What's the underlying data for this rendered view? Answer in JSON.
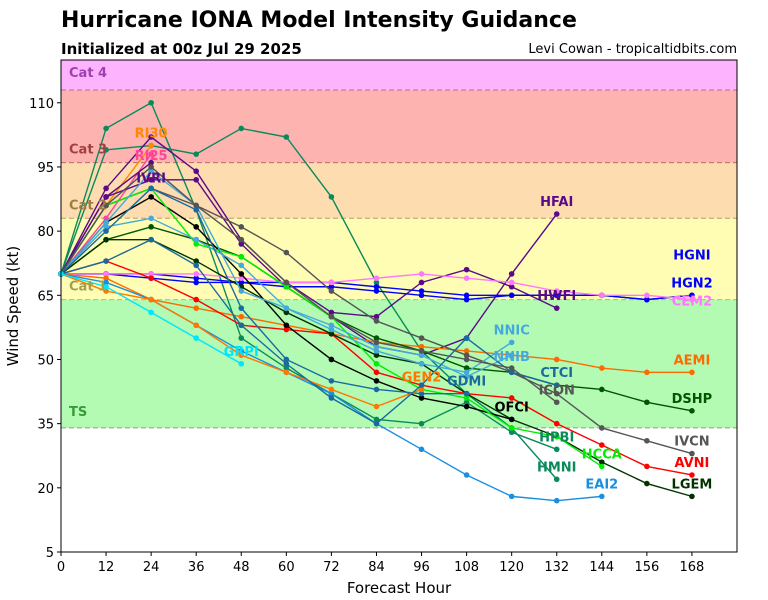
{
  "chart_data": {
    "type": "line",
    "title": "Hurricane IONA Model Intensity Guidance",
    "subtitle": "Initialized at 00z Jul 29 2025",
    "credit": "Levi Cowan - tropicaltidbits.com",
    "xlabel": "Forecast Hour",
    "ylabel": "Wind Speed (kt)",
    "xlim": [
      0,
      180
    ],
    "ylim": [
      5,
      120
    ],
    "xticks": [
      0,
      12,
      24,
      36,
      48,
      60,
      72,
      84,
      96,
      108,
      120,
      132,
      144,
      156,
      168
    ],
    "yticks": [
      5,
      20,
      35,
      50,
      65,
      80,
      95,
      110
    ],
    "bands": [
      {
        "label": "TS",
        "from": 34,
        "to": 64,
        "color": "#b3fbb3",
        "text_color": "#3a9a3a"
      },
      {
        "label": "Cat 1",
        "from": 64,
        "to": 83,
        "color": "#fffdb3",
        "text_color": "#a0a050"
      },
      {
        "label": "Cat 2",
        "from": 83,
        "to": 96,
        "color": "#fddcb0",
        "text_color": "#a07a40"
      },
      {
        "label": "Cat 3",
        "from": 96,
        "to": 113,
        "color": "#fdb3b0",
        "text_color": "#a04040"
      },
      {
        "label": "Cat 4",
        "from": 113,
        "to": 120,
        "color": "#fdb3fd",
        "text_color": "#a040b0"
      }
    ],
    "series": [
      {
        "name": "HMNI",
        "color": "#0a8a5a",
        "x": [
          0,
          12,
          24,
          36,
          48,
          60,
          72,
          84,
          96,
          108,
          120,
          132
        ],
        "y": [
          70,
          99,
          100,
          98,
          104,
          102,
          88,
          68,
          52,
          42,
          34,
          22
        ]
      },
      {
        "name": "HPBI",
        "color": "#0a8a5a",
        "x": [
          0,
          12,
          24,
          36,
          48,
          60,
          72,
          84,
          96,
          108,
          120,
          132
        ],
        "y": [
          70,
          104,
          110,
          85,
          55,
          48,
          42,
          36,
          35,
          40,
          33,
          29
        ]
      },
      {
        "name": "RI30",
        "color": "#ff8800",
        "x": [
          0,
          12,
          24
        ],
        "y": [
          70,
          86,
          100
        ]
      },
      {
        "name": "RI25",
        "color": "#ff4499",
        "x": [
          0,
          12,
          24
        ],
        "y": [
          70,
          83,
          98
        ]
      },
      {
        "name": "IVRI",
        "color": "#5a0a87",
        "x": [
          0,
          12,
          24
        ],
        "y": [
          70,
          88,
          96
        ]
      },
      {
        "name": "HWFI",
        "color": "#5a0a87",
        "x": [
          0,
          12,
          24,
          36,
          48,
          60,
          72,
          84,
          96,
          108,
          120,
          132
        ],
        "y": [
          70,
          90,
          102,
          94,
          78,
          68,
          61,
          60,
          68,
          71,
          67,
          62
        ]
      },
      {
        "name": "HFAI",
        "color": "#5a0a87",
        "x": [
          0,
          12,
          24,
          36,
          48,
          60,
          72,
          84,
          96,
          108,
          120,
          132
        ],
        "y": [
          70,
          88,
          92,
          92,
          77,
          67,
          60,
          53,
          51,
          55,
          70,
          84
        ]
      },
      {
        "name": "HGN2",
        "color": "#0000ff",
        "x": [
          0,
          12,
          24,
          36,
          48,
          60,
          72,
          84,
          96,
          108,
          120,
          132,
          144,
          156,
          168
        ],
        "y": [
          70,
          70,
          70,
          69,
          68,
          68,
          68,
          67,
          66,
          65,
          65,
          65,
          65,
          64,
          65
        ]
      },
      {
        "name": "HGNI",
        "color": "#0000ff",
        "x": [
          0,
          12,
          24,
          36,
          48,
          60,
          72,
          84,
          96,
          108,
          120,
          132,
          144,
          156,
          168
        ],
        "y": [
          70,
          70,
          69,
          68,
          68,
          67,
          67,
          66,
          65,
          64,
          65,
          65,
          65,
          64,
          65
        ]
      },
      {
        "name": "CEM2",
        "color": "#ff77ff",
        "x": [
          0,
          12,
          24,
          36,
          48,
          60,
          72,
          84,
          96,
          108,
          120,
          132,
          144,
          156,
          168
        ],
        "y": [
          70,
          70,
          70,
          70,
          69,
          68,
          68,
          69,
          70,
          69,
          68,
          66,
          65,
          65,
          64
        ]
      },
      {
        "name": "AEMI",
        "color": "#ff6a00",
        "x": [
          0,
          12,
          24,
          36,
          48,
          60,
          72,
          84,
          96,
          108,
          120,
          132,
          144,
          156,
          168
        ],
        "y": [
          70,
          69,
          64,
          62,
          60,
          58,
          56,
          54,
          53,
          52,
          51,
          50,
          48,
          47,
          47
        ]
      },
      {
        "name": "DSHP",
        "color": "#005500",
        "x": [
          0,
          12,
          24,
          36,
          48,
          60,
          72,
          84,
          96,
          108,
          120,
          132,
          144,
          156,
          168
        ],
        "y": [
          70,
          78,
          81,
          78,
          74,
          67,
          60,
          55,
          52,
          48,
          47,
          44,
          43,
          40,
          38
        ]
      },
      {
        "name": "IVCN",
        "color": "#555555",
        "x": [
          0,
          12,
          24,
          36,
          48,
          60,
          72,
          84,
          96,
          108,
          120,
          132,
          144,
          156,
          168
        ],
        "y": [
          70,
          86,
          90,
          86,
          81,
          75,
          66,
          59,
          55,
          51,
          47,
          42,
          34,
          31,
          28
        ]
      },
      {
        "name": "AVNI",
        "color": "#ff0000",
        "x": [
          0,
          12,
          24,
          36,
          48,
          60,
          72,
          84,
          96,
          108,
          120,
          132,
          144,
          156,
          168
        ],
        "y": [
          70,
          73,
          69,
          64,
          58,
          57,
          56,
          47,
          44,
          42,
          41,
          35,
          30,
          25,
          23
        ]
      },
      {
        "name": "LGEM",
        "color": "#003300",
        "x": [
          0,
          12,
          24,
          36,
          48,
          60,
          72,
          84,
          96,
          108,
          120,
          132,
          144,
          156,
          168
        ],
        "y": [
          70,
          78,
          78,
          73,
          67,
          61,
          56,
          51,
          49,
          42,
          36,
          32,
          26,
          21,
          18
        ]
      },
      {
        "name": "OFCI",
        "color": "#000000",
        "x": [
          0,
          12,
          24,
          36,
          48,
          60,
          72,
          84,
          96,
          108,
          120
        ],
        "y": [
          70,
          82,
          88,
          81,
          70,
          58,
          50,
          45,
          41,
          39,
          36
        ]
      },
      {
        "name": "HCCA",
        "color": "#00ee00",
        "x": [
          0,
          12,
          24,
          36,
          48,
          60,
          72,
          84,
          96,
          108,
          120,
          132,
          144
        ],
        "y": [
          70,
          86,
          90,
          77,
          74,
          67,
          60,
          49,
          43,
          41,
          34,
          32,
          25
        ]
      },
      {
        "name": "EAI2",
        "color": "#1a8fe0",
        "x": [
          0,
          12,
          24,
          36,
          48,
          60,
          72,
          84,
          96,
          108,
          120,
          132,
          144
        ],
        "y": [
          70,
          68,
          64,
          58,
          52,
          47,
          42,
          35,
          29,
          23,
          18,
          17,
          18
        ]
      },
      {
        "name": "NNIC",
        "color": "#44aadd",
        "x": [
          0,
          12,
          24,
          36,
          48,
          60,
          72,
          84,
          96,
          108,
          120
        ],
        "y": [
          70,
          81,
          83,
          78,
          72,
          62,
          57,
          52,
          49,
          47,
          54
        ]
      },
      {
        "name": "NNIB",
        "color": "#44aadd",
        "x": [
          0,
          12,
          24,
          36,
          48,
          60,
          72,
          84,
          96,
          108,
          120
        ],
        "y": [
          70,
          82,
          94,
          86,
          66,
          62,
          58,
          53,
          51,
          46,
          51
        ]
      },
      {
        "name": "GDMI",
        "color": "#1a6aa0",
        "x": [
          0,
          12,
          24,
          36,
          48,
          60,
          72,
          84,
          96,
          108
        ],
        "y": [
          70,
          80,
          90,
          85,
          62,
          50,
          45,
          43,
          42,
          42
        ]
      },
      {
        "name": "GEN2",
        "color": "#ff7700",
        "x": [
          0,
          12,
          24,
          36,
          48,
          60,
          72,
          84,
          96
        ],
        "y": [
          70,
          66,
          64,
          58,
          51,
          47,
          43,
          39,
          43
        ]
      },
      {
        "name": "CTCI",
        "color": "#1a6aa0",
        "x": [
          0,
          12,
          24,
          36,
          48,
          60,
          72,
          84,
          96,
          108,
          120,
          132
        ],
        "y": [
          70,
          73,
          78,
          72,
          58,
          49,
          41,
          35,
          44,
          55,
          47,
          44
        ]
      },
      {
        "name": "ICON",
        "color": "#555555",
        "x": [
          0,
          12,
          24,
          36,
          48,
          60,
          72,
          84,
          96,
          108,
          120,
          132
        ],
        "y": [
          70,
          86,
          95,
          86,
          78,
          68,
          60,
          54,
          52,
          50,
          48,
          40
        ]
      },
      {
        "name": "GRPI",
        "color": "#00e5ff",
        "x": [
          0,
          12,
          24,
          36,
          48
        ],
        "y": [
          70,
          67,
          61,
          55,
          49
        ]
      }
    ]
  }
}
